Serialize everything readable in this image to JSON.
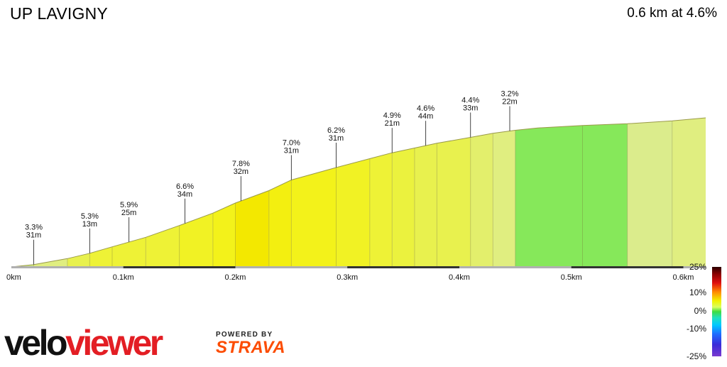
{
  "header": {
    "title": "UP LAVIGNY",
    "summary": "0.6 km at 4.6%"
  },
  "branding": {
    "logo_text": "veloviewer",
    "powered_by": "POWERED BY",
    "strava": "STRAVA"
  },
  "colors": {
    "logo_red": "#e31e24",
    "logo_black": "#111111",
    "strava_orange": "#fc4c02"
  },
  "chart_data": {
    "type": "area",
    "title": "UP LAVIGNY",
    "xlabel": "",
    "ylabel": "",
    "x_unit": "km",
    "xlim": [
      0,
      0.62
    ],
    "ylim": [
      0,
      30
    ],
    "x_ticks": [
      {
        "value": 0.0,
        "label": "0km"
      },
      {
        "value": 0.1,
        "label": "0.1km"
      },
      {
        "value": 0.2,
        "label": "0.2km"
      },
      {
        "value": 0.3,
        "label": "0.3km"
      },
      {
        "value": 0.4,
        "label": "0.4km"
      },
      {
        "value": 0.5,
        "label": "0.5km"
      },
      {
        "value": 0.6,
        "label": "0.6km"
      }
    ],
    "profile": {
      "x": [
        0.0,
        0.02,
        0.05,
        0.07,
        0.09,
        0.12,
        0.15,
        0.18,
        0.2,
        0.23,
        0.25,
        0.29,
        0.32,
        0.34,
        0.36,
        0.38,
        0.41,
        0.43,
        0.45,
        0.47,
        0.51,
        0.55,
        0.59,
        0.62
      ],
      "y": [
        0.0,
        0.4,
        1.4,
        2.3,
        3.4,
        5.0,
        7.0,
        9.1,
        10.8,
        12.9,
        14.7,
        16.8,
        18.3,
        19.3,
        20.1,
        20.9,
        21.9,
        22.6,
        23.1,
        23.5,
        23.9,
        24.2,
        24.7,
        25.2
      ]
    },
    "gradient_segments": [
      {
        "x0": 0.0,
        "x1": 0.02,
        "grade": 2.0
      },
      {
        "x0": 0.02,
        "x1": 0.05,
        "grade": 3.3
      },
      {
        "x0": 0.05,
        "x1": 0.07,
        "grade": 4.5
      },
      {
        "x0": 0.07,
        "x1": 0.09,
        "grade": 5.3
      },
      {
        "x0": 0.09,
        "x1": 0.12,
        "grade": 5.6
      },
      {
        "x0": 0.12,
        "x1": 0.15,
        "grade": 5.9
      },
      {
        "x0": 0.15,
        "x1": 0.18,
        "grade": 6.6
      },
      {
        "x0": 0.18,
        "x1": 0.2,
        "grade": 7.0
      },
      {
        "x0": 0.2,
        "x1": 0.23,
        "grade": 7.8
      },
      {
        "x0": 0.23,
        "x1": 0.25,
        "grade": 7.4
      },
      {
        "x0": 0.25,
        "x1": 0.29,
        "grade": 7.0
      },
      {
        "x0": 0.29,
        "x1": 0.32,
        "grade": 6.2
      },
      {
        "x0": 0.32,
        "x1": 0.34,
        "grade": 5.6
      },
      {
        "x0": 0.34,
        "x1": 0.36,
        "grade": 4.9
      },
      {
        "x0": 0.36,
        "x1": 0.38,
        "grade": 4.6
      },
      {
        "x0": 0.38,
        "x1": 0.41,
        "grade": 4.4
      },
      {
        "x0": 0.41,
        "x1": 0.43,
        "grade": 3.6
      },
      {
        "x0": 0.43,
        "x1": 0.45,
        "grade": 3.2
      },
      {
        "x0": 0.45,
        "x1": 0.51,
        "grade": 0.8
      },
      {
        "x0": 0.51,
        "x1": 0.55,
        "grade": 0.9
      },
      {
        "x0": 0.55,
        "x1": 0.59,
        "grade": 2.6
      },
      {
        "x0": 0.59,
        "x1": 0.62,
        "grade": 3.4
      }
    ],
    "annotations": [
      {
        "x": 0.02,
        "grade_label": "3.3%",
        "length_label": "31m"
      },
      {
        "x": 0.07,
        "grade_label": "5.3%",
        "length_label": "13m"
      },
      {
        "x": 0.105,
        "grade_label": "5.9%",
        "length_label": "25m"
      },
      {
        "x": 0.155,
        "grade_label": "6.6%",
        "length_label": "34m"
      },
      {
        "x": 0.205,
        "grade_label": "7.8%",
        "length_label": "32m"
      },
      {
        "x": 0.25,
        "grade_label": "7.0%",
        "length_label": "31m"
      },
      {
        "x": 0.29,
        "grade_label": "6.2%",
        "length_label": "31m"
      },
      {
        "x": 0.34,
        "grade_label": "4.9%",
        "length_label": "21m"
      },
      {
        "x": 0.37,
        "grade_label": "4.6%",
        "length_label": "44m"
      },
      {
        "x": 0.41,
        "grade_label": "4.4%",
        "length_label": "33m"
      },
      {
        "x": 0.445,
        "grade_label": "3.2%",
        "length_label": "22m"
      }
    ],
    "grade_scale": {
      "labels": [
        "25%",
        "10%",
        "0%",
        "-10%",
        "-25%"
      ],
      "values": [
        25,
        10,
        0,
        -10,
        -25
      ]
    }
  }
}
